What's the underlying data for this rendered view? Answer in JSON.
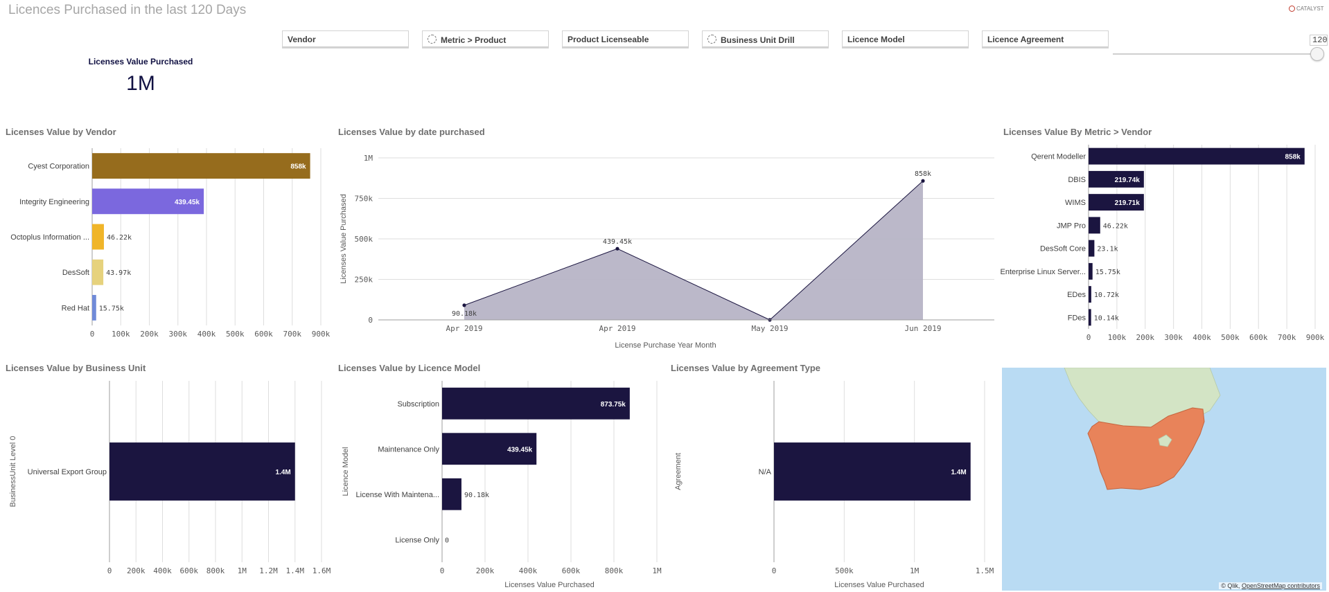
{
  "header": {
    "title": "Licences Purchased in the last 120 Days",
    "logo_text": "CATALYST"
  },
  "filters": [
    "Vendor",
    "Metric > Product",
    "Product Licenseable",
    "Business Unit Drill",
    "Licence Model",
    "Licence Agreement"
  ],
  "slider": {
    "value": "120",
    "max": 120
  },
  "kpi": {
    "label": "Licenses Value Purchased",
    "value": "1M"
  },
  "colors": {
    "navy": "#1b1540",
    "area": "#b7b4c6",
    "grid": "#dedede",
    "map_land": "#d3e4c5",
    "map_highlight": "#e8835a",
    "map_water": "#b9dbf3"
  },
  "panels": {
    "vendor": {
      "title": "Licenses Value by Vendor",
      "categories": [
        "Cyest Corporation",
        "Integrity Engineering",
        "Octoplus Information ...",
        "DesSoft",
        "Red Hat"
      ],
      "values": [
        858000,
        439450,
        46220,
        43970,
        15750
      ],
      "labels": [
        "858k",
        "439.45k",
        "46.22k",
        "43.97k",
        "15.75k"
      ],
      "colors": [
        "#966c1d",
        "#7b68de",
        "#f0b529",
        "#e6d27d",
        "#6f8ad8"
      ],
      "xticks": [
        "0",
        "100k",
        "200k",
        "300k",
        "400k",
        "500k",
        "600k",
        "700k",
        "900k"
      ]
    },
    "date": {
      "title": "Licenses Value by date purchased",
      "x": [
        "Apr 2019",
        "Apr 2019",
        "May 2019",
        "Jun 2019"
      ],
      "values": [
        90180,
        439450,
        0,
        858000
      ],
      "labels": [
        "90.18k",
        "439.45k",
        "",
        "858k"
      ],
      "yticks": [
        "0",
        "250k",
        "500k",
        "750k",
        "1M"
      ],
      "xlabel": "License Purchase Year Month",
      "ylabel": "Licenses Value Purchased"
    },
    "metric": {
      "title": "Licenses Value By Metric > Vendor",
      "categories": [
        "Qerent Modeller",
        "DBIS",
        "WIMS",
        "JMP Pro",
        "DesSoft Core",
        "Enterprise Linux Server...",
        "EDes",
        "FDes"
      ],
      "values": [
        858000,
        219740,
        219710,
        46220,
        23100,
        15750,
        10720,
        10140
      ],
      "labels": [
        "858k",
        "219.74k",
        "219.71k",
        "46.22k",
        "23.1k",
        "15.75k",
        "10.72k",
        "10.14k"
      ],
      "xticks": [
        "0",
        "100k",
        "200k",
        "300k",
        "400k",
        "500k",
        "600k",
        "700k",
        "900k"
      ]
    },
    "bu": {
      "title": "Licenses Value by Business Unit",
      "categories": [
        "Universal Export Group"
      ],
      "values": [
        1400000
      ],
      "labels": [
        "1.4M"
      ],
      "xticks": [
        "0",
        "200k",
        "400k",
        "600k",
        "800k",
        "1M",
        "1.2M",
        "1.4M",
        "1.6M"
      ],
      "ylabel": "BusinessUnit Level 0"
    },
    "model": {
      "title": "Licenses Value by Licence Model",
      "categories": [
        "Subscription",
        "Maintenance Only",
        "License With Maintena...",
        "License Only"
      ],
      "values": [
        873750,
        439450,
        90180,
        0
      ],
      "labels": [
        "873.75k",
        "439.45k",
        "90.18k",
        "0"
      ],
      "xticks": [
        "0",
        "200k",
        "400k",
        "600k",
        "800k",
        "1M"
      ],
      "xlabel": "Licenses Value Purchased",
      "ylabel": "Licence Model"
    },
    "agreement": {
      "title": "Licenses Value by Agreement Type",
      "categories": [
        "N/A"
      ],
      "values": [
        1400000
      ],
      "labels": [
        "1.4M"
      ],
      "xticks": [
        "0",
        "500k",
        "1M",
        "1.5M"
      ],
      "xlabel": "Licenses Value Purchased",
      "ylabel": "Agreement"
    },
    "map": {
      "credit_prefix": "© Qlik,",
      "credit_link": "OpenStreetMap contributors"
    }
  },
  "chart_data": [
    {
      "type": "bar",
      "title": "Licenses Value by Vendor",
      "categories": [
        "Cyest Corporation",
        "Integrity Engineering",
        "Octoplus Information ...",
        "DesSoft",
        "Red Hat"
      ],
      "values": [
        858000,
        439450,
        46220,
        43970,
        15750
      ],
      "xlim": [
        0,
        900000
      ]
    },
    {
      "type": "area",
      "title": "Licenses Value by date purchased",
      "x": [
        "Apr 2019",
        "Apr 2019",
        "May 2019",
        "Jun 2019"
      ],
      "values": [
        90180,
        439450,
        0,
        858000
      ],
      "xlabel": "License Purchase Year Month",
      "ylabel": "Licenses Value Purchased",
      "ylim": [
        0,
        1000000
      ]
    },
    {
      "type": "bar",
      "title": "Licenses Value By Metric > Vendor",
      "categories": [
        "Qerent Modeller",
        "DBIS",
        "WIMS",
        "JMP Pro",
        "DesSoft Core",
        "Enterprise Linux Server...",
        "EDes",
        "FDes"
      ],
      "values": [
        858000,
        219740,
        219710,
        46220,
        23100,
        15750,
        10720,
        10140
      ],
      "xlim": [
        0,
        900000
      ]
    },
    {
      "type": "bar",
      "title": "Licenses Value by Business Unit",
      "categories": [
        "Universal Export Group"
      ],
      "values": [
        1400000
      ],
      "ylabel": "BusinessUnit Level 0",
      "xlim": [
        0,
        1600000
      ]
    },
    {
      "type": "bar",
      "title": "Licenses Value by Licence Model",
      "categories": [
        "Subscription",
        "Maintenance Only",
        "License With Maintena...",
        "License Only"
      ],
      "values": [
        873750,
        439450,
        90180,
        0
      ],
      "xlabel": "Licenses Value Purchased",
      "ylabel": "Licence Model",
      "xlim": [
        0,
        1000000
      ]
    },
    {
      "type": "bar",
      "title": "Licenses Value by Agreement Type",
      "categories": [
        "N/A"
      ],
      "values": [
        1400000
      ],
      "xlabel": "Licenses Value Purchased",
      "ylabel": "Agreement",
      "xlim": [
        0,
        1500000
      ]
    }
  ]
}
